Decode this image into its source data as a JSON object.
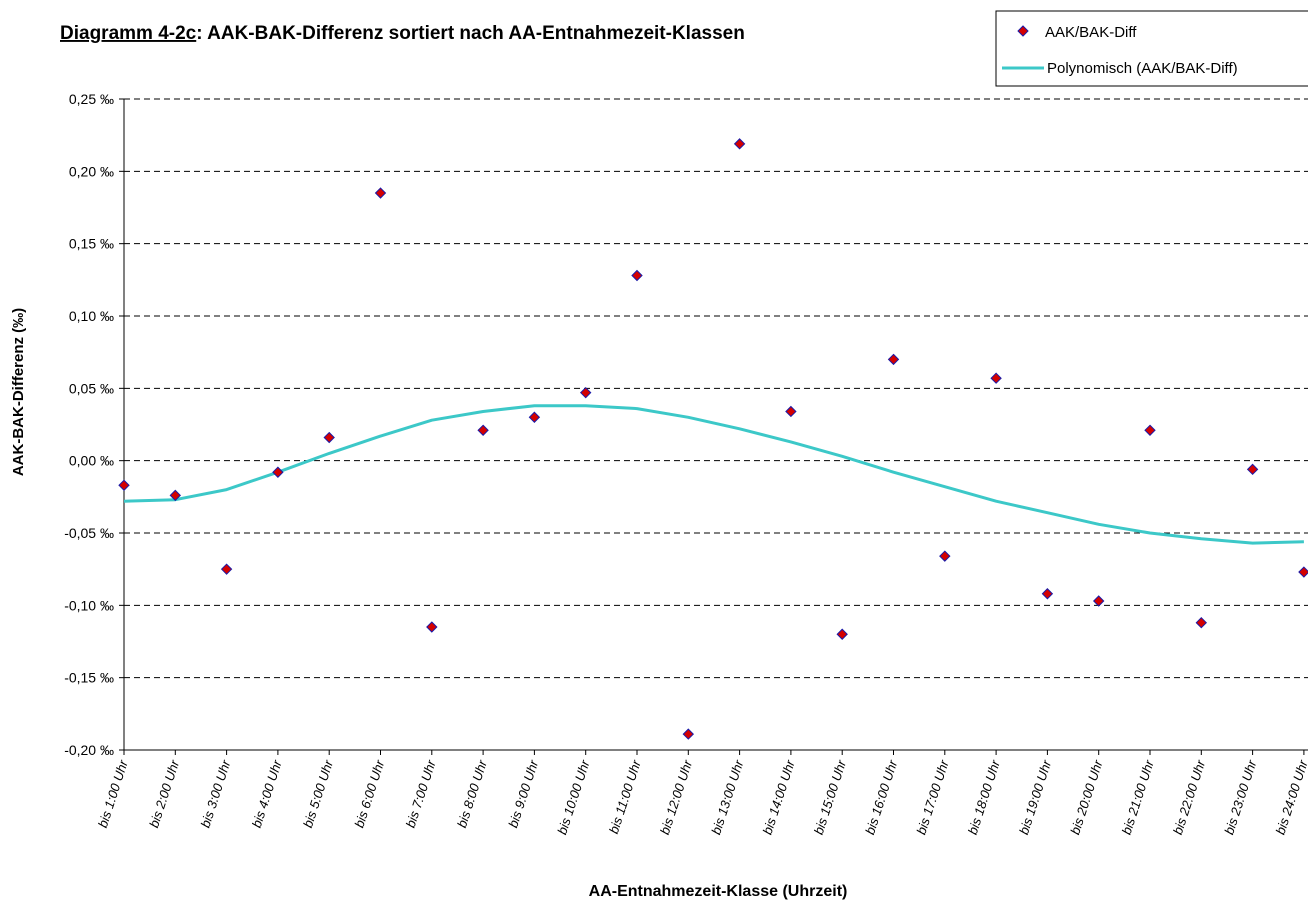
{
  "chart_data": {
    "type": "scatter",
    "title_prefix": "Diagramm 4-2c",
    "title_rest": ": AAK-BAK-Differenz sortiert nach AA-Entnahmezeit-Klassen",
    "xlabel": "AA-Entnahmezeit-Klasse (Uhrzeit)",
    "ylabel": "AAK-BAK-Differenz (‰)",
    "ylim": [
      -0.2,
      0.25
    ],
    "y_ticks": [
      0.25,
      0.2,
      0.15,
      0.1,
      0.05,
      0.0,
      -0.05,
      -0.1,
      -0.15,
      -0.2
    ],
    "y_tick_labels": [
      "0,25 ‰",
      "0,20 ‰",
      "0,15 ‰",
      "0,10 ‰",
      "0,05 ‰",
      "0,00 ‰",
      "-0,05 ‰",
      "-0,10 ‰",
      "-0,15 ‰",
      "-0,20 ‰"
    ],
    "grid": "horizontal-dashed",
    "legend_position": "top-right",
    "categories": [
      "bis 1:00 Uhr",
      "bis 2:00 Uhr",
      "bis 3:00 Uhr",
      "bis 4:00 Uhr",
      "bis 5:00 Uhr",
      "bis 6:00 Uhr",
      "bis 7:00 Uhr",
      "bis 8:00 Uhr",
      "bis 9:00 Uhr",
      "bis 10:00 Uhr",
      "bis 11:00 Uhr",
      "bis 12:00 Uhr",
      "bis 13:00 Uhr",
      "bis 14:00 Uhr",
      "bis 15:00 Uhr",
      "bis 16:00 Uhr",
      "bis 17:00 Uhr",
      "bis 18:00 Uhr",
      "bis 19:00 Uhr",
      "bis 20:00 Uhr",
      "bis 21:00 Uhr",
      "bis 22:00 Uhr",
      "bis 23:00 Uhr",
      "bis 24:00 Uhr"
    ],
    "series": [
      {
        "name": "AAK/BAK-Diff",
        "kind": "markers",
        "marker": "diamond",
        "color": "#d40000",
        "edge_color": "#1a1aa8",
        "values": [
          -0.017,
          -0.024,
          -0.075,
          -0.008,
          0.016,
          0.185,
          -0.115,
          0.021,
          0.03,
          0.047,
          0.128,
          -0.189,
          0.219,
          0.034,
          -0.12,
          0.07,
          -0.066,
          0.057,
          -0.092,
          -0.097,
          0.021,
          -0.112,
          -0.006,
          -0.077
        ]
      },
      {
        "name": "Polynomisch (AAK/BAK-Diff)",
        "kind": "trendline",
        "color": "#3cc8c8",
        "values": [
          -0.028,
          -0.027,
          -0.02,
          -0.008,
          0.005,
          0.017,
          0.028,
          0.034,
          0.038,
          0.038,
          0.036,
          0.03,
          0.022,
          0.013,
          0.003,
          -0.008,
          -0.018,
          -0.028,
          -0.036,
          -0.044,
          -0.05,
          -0.054,
          -0.057,
          -0.056
        ]
      }
    ]
  }
}
